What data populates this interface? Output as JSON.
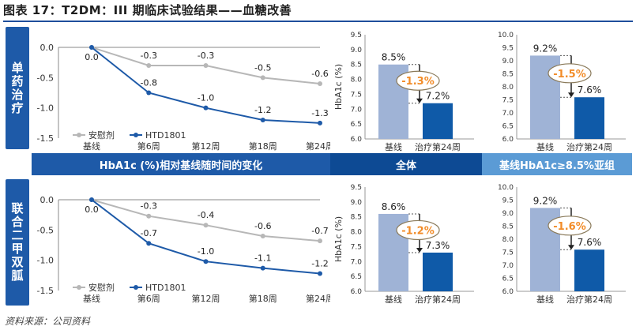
{
  "header": {
    "title": "图表 17：T2DM：III 期临床试验结果——血糖改善"
  },
  "side_labels": [
    "单药治疗",
    "联合二甲双胍"
  ],
  "band_labels": [
    "HbA1c (%)相对基线随时间的变化",
    "全体",
    "基线HbA1c≥8.5%亚组"
  ],
  "source": "资料来源：公司资料",
  "colors": {
    "placebo": "#b7b7b7",
    "drug": "#1e5aa8",
    "bar_baseline": "#9fb3d6",
    "bar_week24": "#0f5aa8",
    "diff_text": "#f28c28",
    "band": "#1e5aa8",
    "band_light": "#5b9bd5"
  },
  "chart_data": [
    {
      "type": "line",
      "panel": "单药治疗",
      "x": [
        "基线",
        "第6周",
        "第12周",
        "第18周",
        "第24周"
      ],
      "series": [
        {
          "name": "安慰剂",
          "values": [
            0.0,
            -0.3,
            -0.3,
            -0.5,
            -0.6
          ],
          "labels": [
            "0.0",
            "-0.3",
            "-0.3",
            "-0.5",
            "-0.6"
          ]
        },
        {
          "name": "HTD1801",
          "values": [
            0.0,
            -0.75,
            -1.0,
            -1.2,
            -1.25
          ],
          "labels": [
            "",
            "-0.8",
            "-1.0",
            "-1.2",
            "-1.3"
          ]
        }
      ],
      "ylim": [
        -1.5,
        0.0
      ],
      "yticks": [
        "0.0",
        "-0.5",
        "-1.0",
        "-1.5"
      ],
      "legend": "bottom-left"
    },
    {
      "type": "bar",
      "panel": "单药治疗 全体",
      "categories": [
        "基线",
        "治疗第24周"
      ],
      "values": [
        8.5,
        7.2
      ],
      "labels": [
        "8.5%",
        "7.2%"
      ],
      "diff": "-1.3%",
      "ylabel": "HbA1c (%)",
      "ylim": [
        6.0,
        9.5
      ],
      "yticks": [
        "6.0",
        "6.5",
        "7.0",
        "7.5",
        "8.0",
        "8.5",
        "9.0",
        "9.5"
      ]
    },
    {
      "type": "bar",
      "panel": "单药治疗 亚组",
      "categories": [
        "基线",
        "治疗第24周"
      ],
      "values": [
        9.2,
        7.6
      ],
      "labels": [
        "9.2%",
        "7.6%"
      ],
      "diff": "-1.5%",
      "ylim": [
        6.0,
        10.0
      ],
      "yticks": [
        "6.0",
        "6.5",
        "7.0",
        "7.5",
        "8.0",
        "8.5",
        "9.0",
        "9.5",
        "10.0"
      ]
    },
    {
      "type": "line",
      "panel": "联合二甲双胍",
      "x": [
        "基线",
        "第6周",
        "第12周",
        "第18周",
        "第24周"
      ],
      "series": [
        {
          "name": "安慰剂",
          "values": [
            0.0,
            -0.27,
            -0.42,
            -0.6,
            -0.68
          ],
          "labels": [
            "0.0",
            "-0.3",
            "-0.4",
            "-0.6",
            "-0.7"
          ]
        },
        {
          "name": "HTD1801",
          "values": [
            0.0,
            -0.72,
            -1.02,
            -1.13,
            -1.22
          ],
          "labels": [
            "",
            "-0.7",
            "-1.0",
            "-1.1",
            "-1.2"
          ]
        }
      ],
      "ylim": [
        -1.5,
        0.0
      ],
      "yticks": [
        "0.0",
        "-0.5",
        "-1.0",
        "-1.5"
      ],
      "legend": "bottom-left"
    },
    {
      "type": "bar",
      "panel": "联合二甲双胍 全体",
      "categories": [
        "基线",
        "治疗第24周"
      ],
      "values": [
        8.6,
        7.3
      ],
      "labels": [
        "8.6%",
        "7.3%"
      ],
      "diff": "-1.2%",
      "ylabel": "HbA1c (%)",
      "ylim": [
        6.0,
        9.5
      ],
      "yticks": [
        "6.0",
        "6.5",
        "7.0",
        "7.5",
        "8.0",
        "8.5",
        "9.0",
        "9.5"
      ]
    },
    {
      "type": "bar",
      "panel": "联合二甲双胍 亚组",
      "categories": [
        "基线",
        "治疗第24周"
      ],
      "values": [
        9.2,
        7.6
      ],
      "labels": [
        "9.2%",
        "7.6%"
      ],
      "diff": "-1.6%",
      "ylim": [
        6.0,
        10.0
      ],
      "yticks": [
        "6.0",
        "6.5",
        "7.0",
        "7.5",
        "8.0",
        "8.5",
        "9.0",
        "9.5",
        "10.0"
      ]
    }
  ]
}
